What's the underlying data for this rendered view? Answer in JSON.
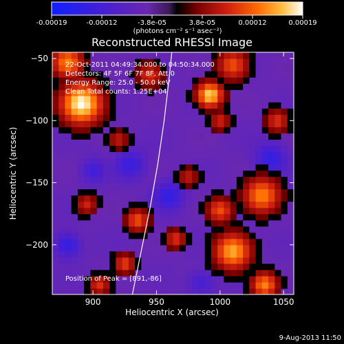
{
  "colorbar": {
    "ticks": [
      "-0.00019",
      "-0.00012",
      "-3.8e-05",
      "3.8e-05",
      "0.00012",
      "0.00019"
    ],
    "unit_label": "(photons cm⁻² s⁻¹ asec⁻²)",
    "colors": [
      "#1020ff",
      "#4a1fd0",
      "#6a28b0",
      "#3a1a55",
      "#000000",
      "#7a0000",
      "#d02010",
      "#ff6a00",
      "#ffc040",
      "#ffffff"
    ]
  },
  "chart_data": {
    "type": "heatmap",
    "title": "Reconstructed RHESSI Image",
    "xlabel": "Heliocentric X (arcsec)",
    "ylabel": "Heliocentric Y (arcsec)",
    "xlim": [
      868,
      1058
    ],
    "ylim": [
      -240,
      -45
    ],
    "xticks": [
      900,
      950,
      1000,
      1050
    ],
    "xtick_labels": [
      "900",
      "950",
      "1000",
      "1050"
    ],
    "yticks": [
      -50,
      -100,
      -150,
      -200
    ],
    "ytick_labels": [
      "−50",
      "−100",
      "−150",
      "−200"
    ],
    "annotations": [
      "22-Oct-2011 04:49:34.000 to 04:50:34.000",
      "Detectors: 4F 5F 6F 7F 8F, Att 0",
      "Energy Range: 25.0 - 50.0 keV",
      "Clean   Total counts: 1.25E+04"
    ],
    "peak_label": "Position of Peak = [891,-86]",
    "peak": [
      891,
      -86
    ],
    "limb_curve": [
      [
        931,
        -240
      ],
      [
        938,
        -205
      ],
      [
        945,
        -170
      ],
      [
        951,
        -135
      ],
      [
        956,
        -100
      ],
      [
        960,
        -65
      ],
      [
        962,
        -45
      ]
    ],
    "blobs": [
      {
        "x": 891,
        "y": -86,
        "r": 16,
        "v": 1.0
      },
      {
        "x": 880,
        "y": -53,
        "r": 12,
        "v": 0.7
      },
      {
        "x": 992,
        "y": -79,
        "r": 10,
        "v": 0.9
      },
      {
        "x": 1010,
        "y": -55,
        "r": 12,
        "v": 0.55
      },
      {
        "x": 945,
        "y": -63,
        "r": 10,
        "v": 0.45
      },
      {
        "x": 1045,
        "y": -100,
        "r": 9,
        "v": 0.45
      },
      {
        "x": 1000,
        "y": -100,
        "r": 8,
        "v": 0.4
      },
      {
        "x": 920,
        "y": -115,
        "r": 8,
        "v": 0.35
      },
      {
        "x": 1033,
        "y": -160,
        "r": 14,
        "v": 0.7
      },
      {
        "x": 1000,
        "y": -172,
        "r": 10,
        "v": 0.55
      },
      {
        "x": 895,
        "y": -167,
        "r": 8,
        "v": 0.4
      },
      {
        "x": 935,
        "y": -180,
        "r": 9,
        "v": 0.55
      },
      {
        "x": 1010,
        "y": -205,
        "r": 14,
        "v": 0.8
      },
      {
        "x": 1035,
        "y": -232,
        "r": 10,
        "v": 0.7
      },
      {
        "x": 925,
        "y": -215,
        "r": 8,
        "v": 0.5
      },
      {
        "x": 965,
        "y": -195,
        "r": 8,
        "v": 0.45
      },
      {
        "x": 905,
        "y": -232,
        "r": 8,
        "v": 0.45
      },
      {
        "x": 975,
        "y": -145,
        "r": 8,
        "v": 0.35
      },
      {
        "x": 880,
        "y": -200,
        "r": 10,
        "v": -0.5
      },
      {
        "x": 960,
        "y": -160,
        "r": 12,
        "v": -0.45
      },
      {
        "x": 930,
        "y": -135,
        "r": 12,
        "v": -0.4
      },
      {
        "x": 1040,
        "y": -130,
        "r": 12,
        "v": -0.45
      },
      {
        "x": 985,
        "y": -230,
        "r": 10,
        "v": -0.35
      },
      {
        "x": 900,
        "y": -140,
        "r": 10,
        "v": -0.35
      }
    ]
  },
  "footer_date": "9-Aug-2013 11:50"
}
